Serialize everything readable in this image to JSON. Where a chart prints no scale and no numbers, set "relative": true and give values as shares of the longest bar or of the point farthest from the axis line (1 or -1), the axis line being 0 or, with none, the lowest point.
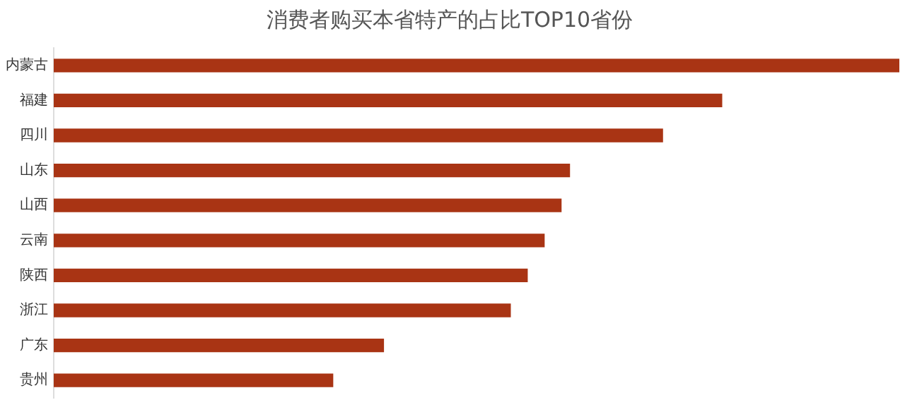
{
  "chart_data": {
    "type": "bar",
    "orientation": "horizontal",
    "relative": true,
    "title": "消费者购买本省特产的占比TOP10省份",
    "categories": [
      "内蒙古",
      "福建",
      "四川",
      "山东",
      "山西",
      "云南",
      "陕西",
      "浙江",
      "广东",
      "贵州"
    ],
    "values": [
      1,
      0.79,
      0.72,
      0.61,
      0.6,
      0.58,
      0.56,
      0.54,
      0.39,
      0.33
    ],
    "color": "#a93414",
    "grid": false,
    "legend": false
  }
}
